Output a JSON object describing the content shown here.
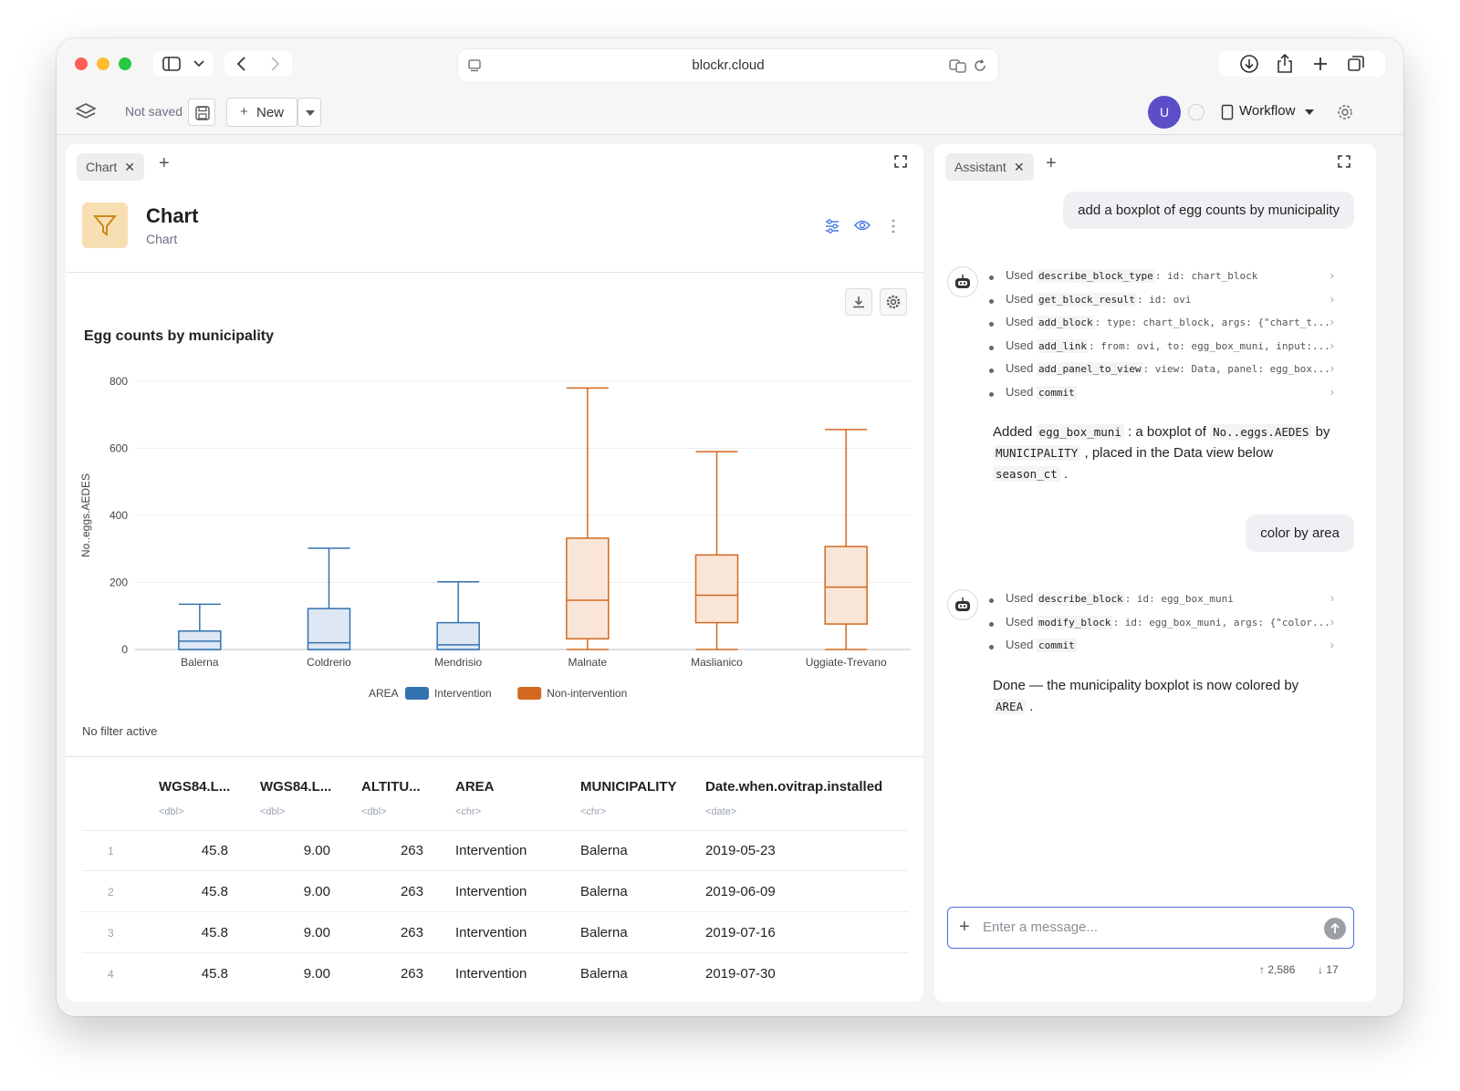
{
  "browser": {
    "url": "blockr.cloud"
  },
  "toolbar": {
    "save_status": "Not saved",
    "new_label": "New",
    "avatar_initial": "U",
    "workflow_label": "Workflow"
  },
  "left_panel": {
    "tab_label": "Chart",
    "block_title": "Chart",
    "block_subtitle": "Chart",
    "filter_status": "No filter active"
  },
  "chart_data": {
    "type": "boxplot",
    "title": "Egg counts by municipality",
    "xlabel": "",
    "ylabel": "No..eggs.AEDES",
    "ylim": [
      0,
      800
    ],
    "yticks": [
      0,
      200,
      400,
      600,
      800
    ],
    "legend_title": "AREA",
    "legend_position": "bottom",
    "grid": true,
    "categories": [
      "Balerna",
      "Coldrerio",
      "Mendrisio",
      "Malnate",
      "Maslianico",
      "Uggiate-Trevano"
    ],
    "series": [
      {
        "name": "Intervention",
        "color": "#3572b0",
        "fill": "#dde8f4"
      },
      {
        "name": "Non-intervention",
        "color": "#d2691e",
        "fill": "#fae6d8"
      }
    ],
    "boxes": [
      {
        "category": "Balerna",
        "series": "Intervention",
        "min": 0,
        "q1": 0,
        "median": 25,
        "q3": 55,
        "max": 135
      },
      {
        "category": "Coldrerio",
        "series": "Intervention",
        "min": 0,
        "q1": 0,
        "median": 20,
        "q3": 122,
        "max": 302
      },
      {
        "category": "Mendrisio",
        "series": "Intervention",
        "min": 0,
        "q1": 0,
        "median": 14,
        "q3": 80,
        "max": 202
      },
      {
        "category": "Malnate",
        "series": "Non-intervention",
        "min": 0,
        "q1": 32,
        "median": 147,
        "q3": 332,
        "max": 780
      },
      {
        "category": "Maslianico",
        "series": "Non-intervention",
        "min": 0,
        "q1": 80,
        "median": 162,
        "q3": 282,
        "max": 590
      },
      {
        "category": "Uggiate-Trevano",
        "series": "Non-intervention",
        "min": 0,
        "q1": 76,
        "median": 186,
        "q3": 307,
        "max": 656
      }
    ]
  },
  "table": {
    "columns": [
      {
        "name": "WGS84.L...",
        "type": "<dbl>"
      },
      {
        "name": "WGS84.L...",
        "type": "<dbl>"
      },
      {
        "name": "ALTITU...",
        "type": "<dbl>"
      },
      {
        "name": "AREA",
        "type": "<chr>"
      },
      {
        "name": "MUNICIPALITY",
        "type": "<chr>"
      },
      {
        "name": "Date.when.ovitrap.installed",
        "type": "<date>"
      }
    ],
    "rows": [
      {
        "n": "1",
        "c": [
          "45.8",
          "9.00",
          "263",
          "Intervention",
          "Balerna",
          "2019-05-23"
        ]
      },
      {
        "n": "2",
        "c": [
          "45.8",
          "9.00",
          "263",
          "Intervention",
          "Balerna",
          "2019-06-09"
        ]
      },
      {
        "n": "3",
        "c": [
          "45.8",
          "9.00",
          "263",
          "Intervention",
          "Balerna",
          "2019-07-16"
        ]
      },
      {
        "n": "4",
        "c": [
          "45.8",
          "9.00",
          "263",
          "Intervention",
          "Balerna",
          "2019-07-30"
        ]
      }
    ]
  },
  "assistant": {
    "tab_label": "Assistant",
    "user_msg_1": "add a boxplot of egg counts by municipality",
    "used": "Used",
    "tools_1": [
      {
        "name": "describe_block_type",
        "args": ": id: chart_block"
      },
      {
        "name": "get_block_result",
        "args": ": id: ovi"
      },
      {
        "name": "add_block",
        "args": ": type: chart_block, args: {\"chart_t..."
      },
      {
        "name": "add_link",
        "args": ": from: ovi, to: egg_box_muni, input:..."
      },
      {
        "name": "add_panel_to_view",
        "args": ": view: Data, panel: egg_box..."
      },
      {
        "name": "commit",
        "args": ""
      }
    ],
    "reply_1": {
      "p1": "Added ",
      "c1": "egg_box_muni",
      "p2": " : a boxplot of ",
      "c2": "No..eggs.AEDES",
      "p3": " by",
      "c3": "MUNICIPALITY",
      "p4": " , placed in the Data view below",
      "c4": "season_ct",
      "p5": " ."
    },
    "user_msg_2": "color by area",
    "tools_2": [
      {
        "name": "describe_block",
        "args": ": id: egg_box_muni"
      },
      {
        "name": "modify_block",
        "args": ": id: egg_box_muni, args: {\"color..."
      },
      {
        "name": "commit",
        "args": ""
      }
    ],
    "reply_2": {
      "p1": "Done — the municipality boxplot is now colored by",
      "c1": "AREA",
      "p2": " ."
    },
    "input_placeholder": "Enter a message...",
    "tokens_up": "↑ 2,586",
    "tokens_down": "↓ 17"
  }
}
